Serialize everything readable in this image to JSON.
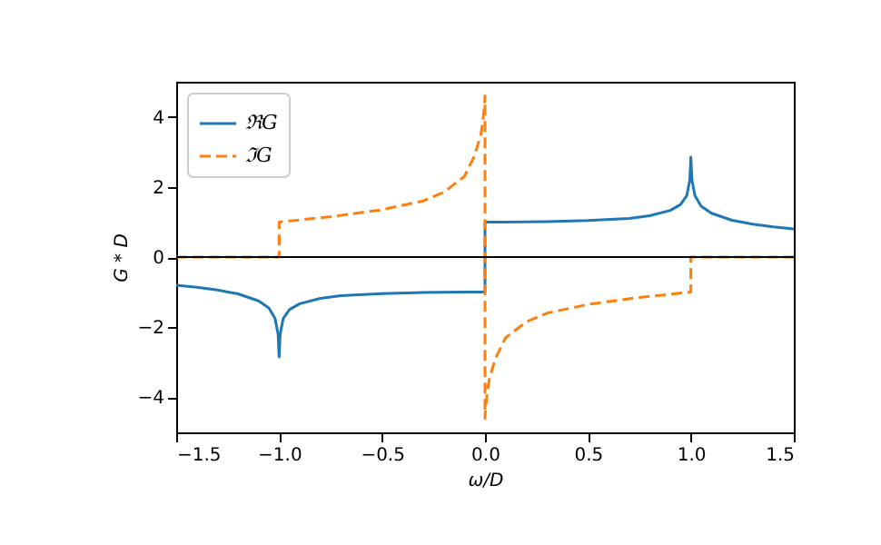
{
  "chart_data": {
    "type": "line",
    "xlabel": "ω/D",
    "ylabel": "G * D",
    "xlim": [
      -1.5,
      1.5
    ],
    "xticks": [
      -1.5,
      {
        "value": -1,
        "label": "−1.0"
      },
      -0.5,
      {
        "value": 0,
        "label": "0.0"
      },
      0.5,
      {
        "value": 1,
        "label": "1.0"
      },
      1.5
    ],
    "ylim": [
      -5,
      5
    ],
    "yticks": [
      -4,
      -2,
      0,
      2,
      4
    ],
    "grid": false,
    "legend": "top left",
    "ref_lines": [
      {
        "axis": "y",
        "value": 0,
        "color": "#000000"
      }
    ],
    "series": [
      {
        "name": "ℜG",
        "color": "#1f77b4",
        "line_style": "solid",
        "x": [
          -1.5,
          -1.4,
          -1.3,
          -1.2,
          -1.1,
          -1.05,
          -1.02,
          -1.005,
          -1.0,
          -0.995,
          -0.98,
          -0.95,
          -0.9,
          -0.8,
          -0.7,
          -0.5,
          -0.3,
          -0.1,
          0,
          0,
          0.1,
          0.3,
          0.5,
          0.7,
          0.8,
          0.9,
          0.95,
          0.98,
          0.995,
          1.0,
          1.005,
          1.02,
          1.05,
          1.1,
          1.2,
          1.3,
          1.4,
          1.5
        ],
        "values": [
          -0.8,
          -0.86,
          -0.94,
          -1.05,
          -1.25,
          -1.45,
          -1.75,
          -2.2,
          -2.85,
          -2.2,
          -1.75,
          -1.5,
          -1.33,
          -1.18,
          -1.1,
          -1.04,
          -1.01,
          -1.0,
          -1.0,
          1.0,
          1.0,
          1.01,
          1.04,
          1.1,
          1.18,
          1.33,
          1.5,
          1.75,
          2.2,
          2.85,
          2.2,
          1.75,
          1.45,
          1.25,
          1.05,
          0.94,
          0.86,
          0.8
        ]
      },
      {
        "name": "ℑG",
        "color": "#ff7f0e",
        "line_style": "dashed",
        "x": [
          -1.5,
          -1.0,
          -1.0,
          -0.75,
          -0.5,
          -0.3,
          -0.2,
          -0.1,
          -0.05,
          -0.02,
          -0.01,
          -0.003,
          0,
          0,
          0.003,
          0.01,
          0.02,
          0.05,
          0.1,
          0.2,
          0.3,
          0.5,
          0.75,
          1.0,
          1.0,
          1.5
        ],
        "values": [
          0,
          0,
          1.0,
          1.15,
          1.35,
          1.6,
          1.85,
          2.3,
          2.9,
          3.5,
          3.9,
          4.3,
          4.6,
          -4.6,
          -4.3,
          -3.9,
          -3.5,
          -2.9,
          -2.3,
          -1.85,
          -1.6,
          -1.35,
          -1.15,
          -1.0,
          0,
          0
        ]
      }
    ]
  }
}
